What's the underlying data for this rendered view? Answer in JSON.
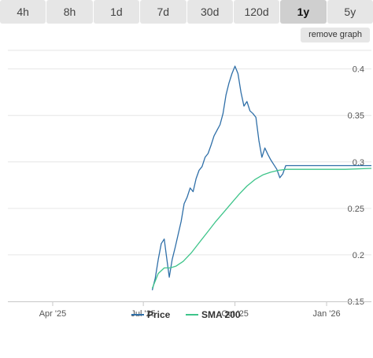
{
  "tabs": [
    {
      "label": "4h",
      "active": false
    },
    {
      "label": "8h",
      "active": false
    },
    {
      "label": "1d",
      "active": false
    },
    {
      "label": "7d",
      "active": false
    },
    {
      "label": "30d",
      "active": false
    },
    {
      "label": "120d",
      "active": false
    },
    {
      "label": "1y",
      "active": true
    },
    {
      "label": "5y",
      "active": false
    }
  ],
  "remove_graph_label": "remove graph",
  "colors": {
    "price": "#2f6fa8",
    "sma": "#3ec48a",
    "grid": "#e6e6e6",
    "axis": "#c8c8c8"
  },
  "chart_data": {
    "type": "line",
    "title": "",
    "xlabel": "",
    "ylabel": "",
    "x_range": [
      "2025-02-15",
      "2026-02-15"
    ],
    "ylim": [
      0.15,
      0.42
    ],
    "y_ticks": [
      0.15,
      0.2,
      0.25,
      0.3,
      0.35,
      0.4
    ],
    "y_tick_labels": [
      "0.15",
      "0.2",
      "0.25",
      "0.3",
      "0.35",
      "0.4"
    ],
    "x_ticks": [
      {
        "date": "2025-04-01",
        "label": "Apr '25"
      },
      {
        "date": "2025-07-01",
        "label": "Jul '25"
      },
      {
        "date": "2025-10-01",
        "label": "Oct '25"
      },
      {
        "date": "2026-01-01",
        "label": "Jan '26"
      }
    ],
    "grid": true,
    "legend": "bottom",
    "series": [
      {
        "name": "Price",
        "x": [
          "2025-07-10",
          "2025-07-13",
          "2025-07-16",
          "2025-07-19",
          "2025-07-22",
          "2025-07-24",
          "2025-07-27",
          "2025-07-30",
          "2025-08-02",
          "2025-08-05",
          "2025-08-08",
          "2025-08-11",
          "2025-08-14",
          "2025-08-17",
          "2025-08-20",
          "2025-08-23",
          "2025-08-26",
          "2025-08-29",
          "2025-09-01",
          "2025-09-04",
          "2025-09-07",
          "2025-09-10",
          "2025-09-13",
          "2025-09-16",
          "2025-09-19",
          "2025-09-22",
          "2025-09-25",
          "2025-09-28",
          "2025-10-01",
          "2025-10-04",
          "2025-10-07",
          "2025-10-10",
          "2025-10-13",
          "2025-10-16",
          "2025-10-19",
          "2025-10-22",
          "2025-10-25",
          "2025-10-28",
          "2025-10-31",
          "2025-11-03",
          "2025-11-06",
          "2025-11-09",
          "2025-11-12",
          "2025-11-15",
          "2025-11-18",
          "2025-11-21",
          "2025-11-24",
          "2025-11-27",
          "2025-12-01",
          "2025-12-10",
          "2025-12-20",
          "2026-01-01",
          "2026-01-20",
          "2026-02-15"
        ],
        "values": [
          0.162,
          0.175,
          0.195,
          0.212,
          0.217,
          0.2,
          0.176,
          0.195,
          0.208,
          0.222,
          0.236,
          0.255,
          0.262,
          0.272,
          0.268,
          0.282,
          0.291,
          0.295,
          0.305,
          0.309,
          0.318,
          0.328,
          0.334,
          0.34,
          0.352,
          0.372,
          0.385,
          0.395,
          0.403,
          0.395,
          0.375,
          0.36,
          0.365,
          0.355,
          0.352,
          0.348,
          0.323,
          0.305,
          0.315,
          0.308,
          0.302,
          0.297,
          0.292,
          0.283,
          0.287,
          0.296,
          0.296,
          0.296,
          0.296,
          0.296,
          0.296,
          0.296,
          0.296,
          0.296
        ]
      },
      {
        "name": "SMA 200",
        "x": [
          "2025-07-10",
          "2025-07-16",
          "2025-07-22",
          "2025-07-28",
          "2025-08-03",
          "2025-08-10",
          "2025-08-18",
          "2025-08-26",
          "2025-09-03",
          "2025-09-11",
          "2025-09-19",
          "2025-09-27",
          "2025-10-05",
          "2025-10-13",
          "2025-10-21",
          "2025-10-29",
          "2025-11-06",
          "2025-11-14",
          "2025-11-22",
          "2025-12-01",
          "2025-12-15",
          "2026-01-01",
          "2026-01-20",
          "2026-02-15"
        ],
        "values": [
          0.164,
          0.18,
          0.186,
          0.186,
          0.188,
          0.193,
          0.202,
          0.213,
          0.224,
          0.235,
          0.245,
          0.255,
          0.265,
          0.274,
          0.281,
          0.286,
          0.289,
          0.291,
          0.292,
          0.292,
          0.292,
          0.292,
          0.292,
          0.293
        ]
      }
    ]
  }
}
